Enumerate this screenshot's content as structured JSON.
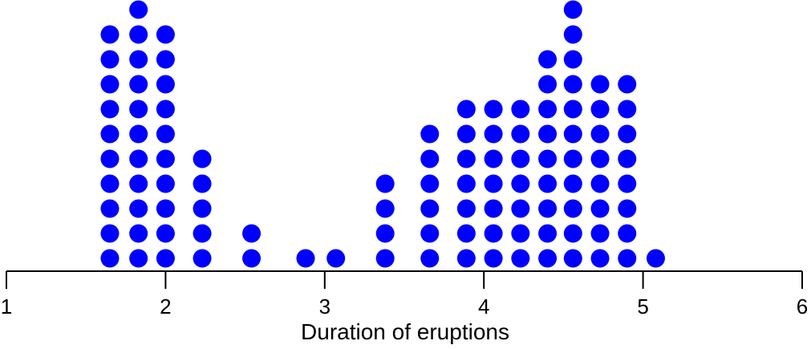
{
  "chart_data": {
    "type": "dotplot",
    "title": "",
    "xlabel": "Duration of eruptions",
    "ylabel": "",
    "xlim": [
      1,
      6
    ],
    "xticks": [
      1,
      2,
      3,
      4,
      5,
      6
    ],
    "dot_color": "#0000ff",
    "axis_color": "#000000",
    "grid": false,
    "stacks": [
      {
        "x": 1.65,
        "count": 10
      },
      {
        "x": 1.83,
        "count": 11
      },
      {
        "x": 2.0,
        "count": 10
      },
      {
        "x": 2.23,
        "count": 5
      },
      {
        "x": 2.54,
        "count": 2
      },
      {
        "x": 2.88,
        "count": 1
      },
      {
        "x": 3.07,
        "count": 1
      },
      {
        "x": 3.38,
        "count": 4
      },
      {
        "x": 3.66,
        "count": 6
      },
      {
        "x": 3.89,
        "count": 7
      },
      {
        "x": 4.06,
        "count": 7
      },
      {
        "x": 4.23,
        "count": 7
      },
      {
        "x": 4.4,
        "count": 9
      },
      {
        "x": 4.56,
        "count": 11
      },
      {
        "x": 4.73,
        "count": 8
      },
      {
        "x": 4.9,
        "count": 8
      },
      {
        "x": 5.08,
        "count": 1
      }
    ]
  }
}
